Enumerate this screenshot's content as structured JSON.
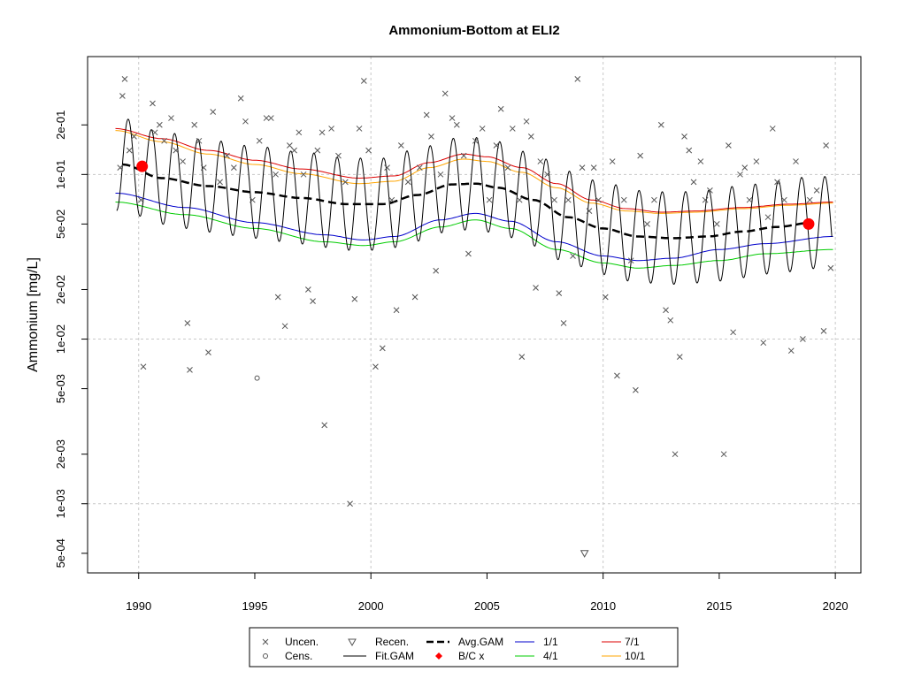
{
  "chart_data": {
    "type": "scatter",
    "title": "Ammonium-Bottom at ELI2",
    "ylabel": "Ammonium [mg/L]",
    "xlabel": "",
    "y_scale": "log",
    "xlim": [
      1987.8,
      2021.1
    ],
    "ylim": [
      0.00038,
      0.52
    ],
    "x_ticks": [
      1990,
      1995,
      2000,
      2005,
      2010,
      2015,
      2020
    ],
    "y_ticks": [
      {
        "value": 0.2,
        "label": "2e-01"
      },
      {
        "value": 0.1,
        "label": "1e-01"
      },
      {
        "value": 0.05,
        "label": "5e-02"
      },
      {
        "value": 0.02,
        "label": "2e-02"
      },
      {
        "value": 0.01,
        "label": "1e-02"
      },
      {
        "value": 0.005,
        "label": "5e-03"
      },
      {
        "value": 0.002,
        "label": "2e-03"
      },
      {
        "value": 0.001,
        "label": "1e-03"
      },
      {
        "value": 0.0005,
        "label": "5e-04"
      }
    ],
    "grid_x": [
      1990,
      2000,
      2010,
      2020
    ],
    "grid_y": [
      0.1,
      0.01,
      0.001
    ],
    "series": {
      "uncensored": [
        [
          1989.3,
          0.3
        ],
        [
          1989.4,
          0.38
        ],
        [
          1989.6,
          0.14
        ],
        [
          1989.2,
          0.11
        ],
        [
          1989.8,
          0.17
        ],
        [
          1990.1,
          0.07
        ],
        [
          1990.2,
          0.0068
        ],
        [
          1990.6,
          0.27
        ],
        [
          1990.7,
          0.18
        ],
        [
          1990.9,
          0.2
        ],
        [
          1991.1,
          0.16
        ],
        [
          1991.4,
          0.22
        ],
        [
          1991.6,
          0.14
        ],
        [
          1991.9,
          0.12
        ],
        [
          1992.1,
          0.0125
        ],
        [
          1992.2,
          0.0065
        ],
        [
          1992.4,
          0.2
        ],
        [
          1992.6,
          0.16
        ],
        [
          1992.8,
          0.11
        ],
        [
          1993.0,
          0.0083
        ],
        [
          1993.2,
          0.24
        ],
        [
          1993.5,
          0.09
        ],
        [
          1993.8,
          0.13
        ],
        [
          1994.1,
          0.11
        ],
        [
          1994.4,
          0.29
        ],
        [
          1994.6,
          0.21
        ],
        [
          1994.9,
          0.07
        ],
        [
          1995.2,
          0.16
        ],
        [
          1995.5,
          0.22
        ],
        [
          1995.7,
          0.22
        ],
        [
          1995.9,
          0.1
        ],
        [
          1996.0,
          0.018
        ],
        [
          1996.3,
          0.012
        ],
        [
          1996.5,
          0.15
        ],
        [
          1996.7,
          0.14
        ],
        [
          1996.9,
          0.18
        ],
        [
          1997.1,
          0.1
        ],
        [
          1997.3,
          0.02
        ],
        [
          1997.5,
          0.017
        ],
        [
          1997.7,
          0.14
        ],
        [
          1997.9,
          0.18
        ],
        [
          1998.0,
          0.003
        ],
        [
          1998.3,
          0.19
        ],
        [
          1998.6,
          0.13
        ],
        [
          1998.9,
          0.09
        ],
        [
          1999.1,
          0.001
        ],
        [
          1999.3,
          0.0175
        ],
        [
          1999.5,
          0.19
        ],
        [
          1999.7,
          0.37
        ],
        [
          1999.9,
          0.14
        ],
        [
          2000.2,
          0.0068
        ],
        [
          2000.5,
          0.0088
        ],
        [
          2000.7,
          0.11
        ],
        [
          2000.9,
          0.07
        ],
        [
          2001.1,
          0.015
        ],
        [
          2001.3,
          0.15
        ],
        [
          2001.6,
          0.09
        ],
        [
          2001.9,
          0.018
        ],
        [
          2002.1,
          0.11
        ],
        [
          2002.4,
          0.23
        ],
        [
          2002.6,
          0.17
        ],
        [
          2002.8,
          0.026
        ],
        [
          2003.0,
          0.1
        ],
        [
          2003.2,
          0.31
        ],
        [
          2003.5,
          0.22
        ],
        [
          2003.7,
          0.2
        ],
        [
          2004.0,
          0.13
        ],
        [
          2004.2,
          0.033
        ],
        [
          2004.5,
          0.16
        ],
        [
          2004.8,
          0.19
        ],
        [
          2005.1,
          0.07
        ],
        [
          2005.4,
          0.15
        ],
        [
          2005.6,
          0.25
        ],
        [
          2005.9,
          0.11
        ],
        [
          2006.1,
          0.19
        ],
        [
          2006.4,
          0.07
        ],
        [
          2006.5,
          0.0078
        ],
        [
          2006.7,
          0.21
        ],
        [
          2006.9,
          0.17
        ],
        [
          2007.1,
          0.0205
        ],
        [
          2007.3,
          0.12
        ],
        [
          2007.6,
          0.1
        ],
        [
          2007.9,
          0.07
        ],
        [
          2008.1,
          0.019
        ],
        [
          2008.3,
          0.0125
        ],
        [
          2008.5,
          0.07
        ],
        [
          2008.7,
          0.032
        ],
        [
          2008.9,
          0.38
        ],
        [
          2009.1,
          0.11
        ],
        [
          2009.4,
          0.06
        ],
        [
          2009.6,
          0.11
        ],
        [
          2009.8,
          0.07
        ],
        [
          2010.1,
          0.018
        ],
        [
          2010.4,
          0.12
        ],
        [
          2010.6,
          0.006
        ],
        [
          2010.9,
          0.07
        ],
        [
          2011.2,
          0.03
        ],
        [
          2011.4,
          0.0049
        ],
        [
          2011.6,
          0.13
        ],
        [
          2011.9,
          0.05
        ],
        [
          2012.2,
          0.07
        ],
        [
          2012.5,
          0.2
        ],
        [
          2012.7,
          0.015
        ],
        [
          2012.9,
          0.013
        ],
        [
          2013.1,
          0.002
        ],
        [
          2013.3,
          0.0078
        ],
        [
          2013.5,
          0.17
        ],
        [
          2013.7,
          0.14
        ],
        [
          2013.9,
          0.09
        ],
        [
          2014.2,
          0.12
        ],
        [
          2014.4,
          0.07
        ],
        [
          2014.6,
          0.08
        ],
        [
          2014.9,
          0.05
        ],
        [
          2015.2,
          0.002
        ],
        [
          2015.4,
          0.15
        ],
        [
          2015.6,
          0.011
        ],
        [
          2015.9,
          0.1
        ],
        [
          2016.1,
          0.11
        ],
        [
          2016.3,
          0.07
        ],
        [
          2016.6,
          0.12
        ],
        [
          2016.9,
          0.0095
        ],
        [
          2017.1,
          0.055
        ],
        [
          2017.3,
          0.19
        ],
        [
          2017.5,
          0.09
        ],
        [
          2017.8,
          0.07
        ],
        [
          2018.1,
          0.0085
        ],
        [
          2018.3,
          0.12
        ],
        [
          2018.6,
          0.01
        ],
        [
          2018.9,
          0.07
        ],
        [
          2019.2,
          0.08
        ],
        [
          2019.5,
          0.0112
        ],
        [
          2019.6,
          0.15
        ],
        [
          2019.8,
          0.027
        ]
      ],
      "censored": [
        [
          1995.1,
          0.0058
        ]
      ],
      "recensored": [
        [
          2009.2,
          0.0005
        ]
      ],
      "avg_gam_knots": [
        [
          1989.3,
          0.115
        ],
        [
          1991.0,
          0.095
        ],
        [
          1993.0,
          0.085
        ],
        [
          1995.0,
          0.078
        ],
        [
          1997.0,
          0.072
        ],
        [
          1999.0,
          0.066
        ],
        [
          2000.5,
          0.066
        ],
        [
          2002.0,
          0.075
        ],
        [
          2003.5,
          0.087
        ],
        [
          2004.5,
          0.088
        ],
        [
          2005.5,
          0.083
        ],
        [
          2007.0,
          0.07
        ],
        [
          2008.5,
          0.055
        ],
        [
          2010.0,
          0.047
        ],
        [
          2011.5,
          0.042
        ],
        [
          2013.0,
          0.041
        ],
        [
          2014.5,
          0.042
        ],
        [
          2016.0,
          0.045
        ],
        [
          2017.5,
          0.048
        ],
        [
          2019.0,
          0.051
        ]
      ],
      "fit_gam": {
        "x_start": 1989.05,
        "x_end": 2019.85,
        "amplitude_log10": 0.28,
        "phase": 0.55
      },
      "bc_points": [
        [
          1990.15,
          0.112
        ],
        [
          2018.85,
          0.05
        ]
      ],
      "curve_1_1_knots": [
        [
          1989.0,
          0.077
        ],
        [
          1992.0,
          0.063
        ],
        [
          1995.0,
          0.051
        ],
        [
          1998.0,
          0.043
        ],
        [
          1999.7,
          0.04
        ],
        [
          2001.0,
          0.042
        ],
        [
          2003.0,
          0.053
        ],
        [
          2004.5,
          0.058
        ],
        [
          2006.0,
          0.052
        ],
        [
          2008.0,
          0.039
        ],
        [
          2010.0,
          0.032
        ],
        [
          2011.5,
          0.03
        ],
        [
          2013.0,
          0.031
        ],
        [
          2015.0,
          0.035
        ],
        [
          2017.0,
          0.038
        ],
        [
          2019.9,
          0.042
        ]
      ],
      "curve_4_1_knots": [
        [
          1989.0,
          0.068
        ],
        [
          1992.0,
          0.057
        ],
        [
          1995.0,
          0.047
        ],
        [
          1998.0,
          0.039
        ],
        [
          1999.7,
          0.037
        ],
        [
          2001.0,
          0.039
        ],
        [
          2003.0,
          0.048
        ],
        [
          2004.5,
          0.053
        ],
        [
          2006.0,
          0.047
        ],
        [
          2008.0,
          0.035
        ],
        [
          2010.0,
          0.029
        ],
        [
          2011.5,
          0.027
        ],
        [
          2013.0,
          0.028
        ],
        [
          2015.0,
          0.03
        ],
        [
          2017.0,
          0.033
        ],
        [
          2019.9,
          0.035
        ]
      ],
      "curve_7_1_knots": [
        [
          1989.0,
          0.19
        ],
        [
          1991.0,
          0.165
        ],
        [
          1993.0,
          0.14
        ],
        [
          1995.0,
          0.122
        ],
        [
          1997.0,
          0.108
        ],
        [
          1999.5,
          0.095
        ],
        [
          2001.0,
          0.098
        ],
        [
          2002.5,
          0.118
        ],
        [
          2004.0,
          0.133
        ],
        [
          2005.0,
          0.128
        ],
        [
          2006.5,
          0.11
        ],
        [
          2008.0,
          0.088
        ],
        [
          2009.5,
          0.07
        ],
        [
          2011.0,
          0.062
        ],
        [
          2012.5,
          0.059
        ],
        [
          2014.0,
          0.06
        ],
        [
          2016.0,
          0.063
        ],
        [
          2018.0,
          0.066
        ],
        [
          2019.9,
          0.068
        ]
      ],
      "curve_10_1_knots": [
        [
          1989.0,
          0.185
        ],
        [
          1991.0,
          0.158
        ],
        [
          1993.0,
          0.133
        ],
        [
          1995.0,
          0.115
        ],
        [
          1997.0,
          0.101
        ],
        [
          1999.5,
          0.088
        ],
        [
          2001.0,
          0.091
        ],
        [
          2002.5,
          0.11
        ],
        [
          2004.0,
          0.124
        ],
        [
          2005.0,
          0.12
        ],
        [
          2006.5,
          0.103
        ],
        [
          2008.0,
          0.083
        ],
        [
          2009.5,
          0.067
        ],
        [
          2011.0,
          0.06
        ],
        [
          2012.5,
          0.058
        ],
        [
          2014.0,
          0.059
        ],
        [
          2016.0,
          0.062
        ],
        [
          2018.0,
          0.065
        ],
        [
          2019.9,
          0.067
        ]
      ]
    },
    "colors": {
      "points": "#555555",
      "fit_gam": "#000000",
      "avg_gam": "#000000",
      "bc": "#ff0000",
      "c1_1": "#0000cc",
      "c4_1": "#00cc00",
      "c7_1": "#dd0000",
      "c10_1": "#ffa500"
    },
    "legend": [
      {
        "label": "Uncen.",
        "symbol": "x"
      },
      {
        "label": "Cens.",
        "symbol": "o"
      },
      {
        "label": "Recen.",
        "symbol": "triangle-down"
      },
      {
        "label": "Fit.GAM",
        "symbol": "line"
      },
      {
        "label": "Avg.GAM",
        "symbol": "dashed-line"
      },
      {
        "label": "B/C x",
        "symbol": "red-diamond"
      },
      {
        "label": "1/1",
        "symbol": "blue-line"
      },
      {
        "label": "4/1",
        "symbol": "green-line"
      },
      {
        "label": "7/1",
        "symbol": "red-line"
      },
      {
        "label": "10/1",
        "symbol": "orange-line"
      }
    ],
    "legend_placement": "bottom-center"
  }
}
